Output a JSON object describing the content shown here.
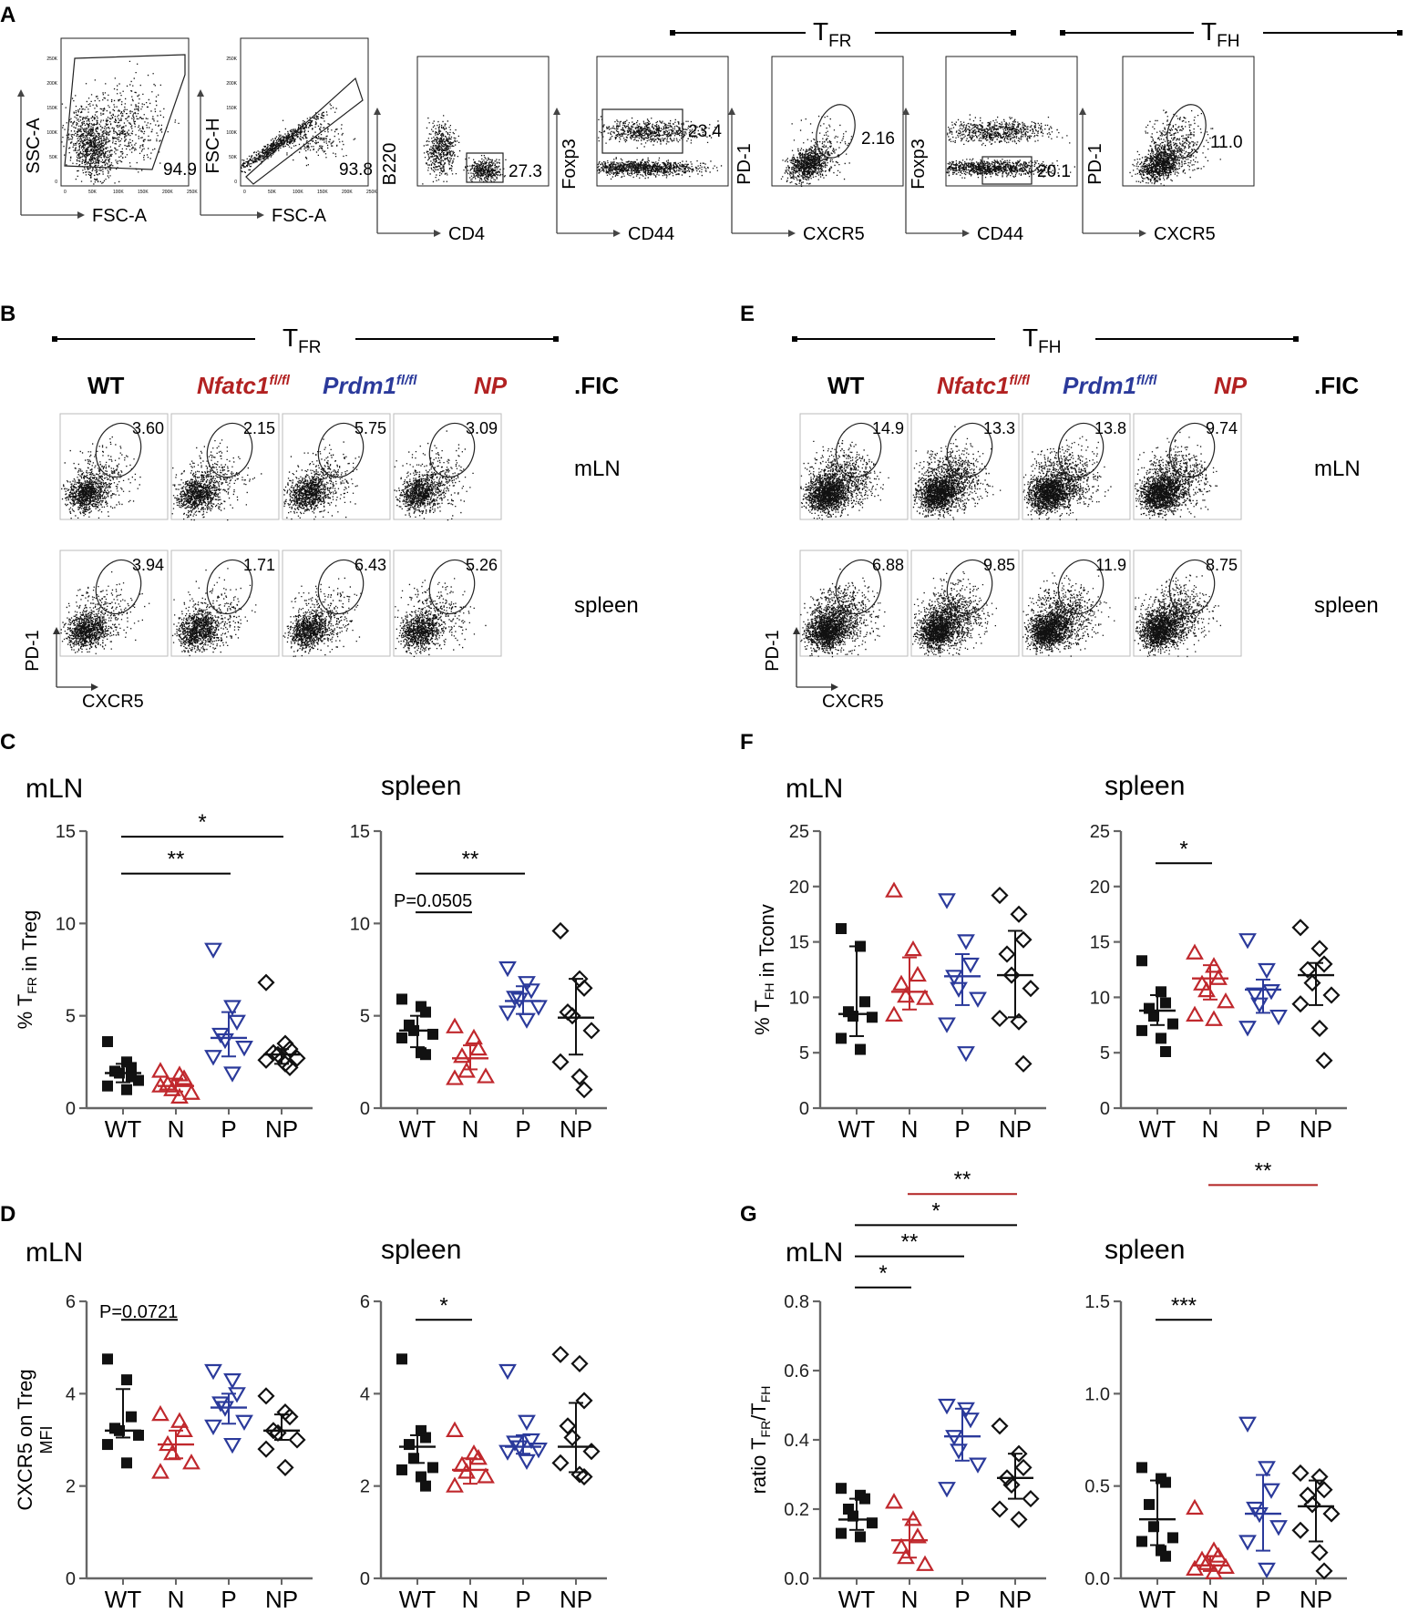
{
  "panel_labels": [
    "A",
    "B",
    "C",
    "D",
    "E",
    "F",
    "G"
  ],
  "panel_a": {
    "plots": [
      {
        "y": "SSC-A",
        "x": "FSC-A",
        "value": "94.9",
        "ticks": [
          "250K",
          "200K",
          "150K",
          "100K",
          "50K",
          "0"
        ],
        "xticks": [
          "0",
          "50K",
          "100K",
          "150K",
          "200K",
          "250K"
        ]
      },
      {
        "y": "FSC-H",
        "x": "FSC-A",
        "value": "93.8",
        "ticks": [
          "250K",
          "200K",
          "150K",
          "100K",
          "50K",
          "0"
        ],
        "xticks": [
          "0",
          "50K",
          "100K",
          "150K",
          "200K",
          "250K"
        ]
      },
      {
        "y": "B220",
        "x": "CD4",
        "value": "27.3"
      },
      {
        "y": "Foxp3",
        "x": "CD44",
        "value": "23.4"
      },
      {
        "y": "PD-1",
        "x": "CXCR5",
        "value": "2.16"
      },
      {
        "y": "Foxp3",
        "x": "CD44",
        "value": "20.1"
      },
      {
        "y": "PD-1",
        "x": "CXCR5",
        "value": "11.0"
      }
    ],
    "tfr_header": {
      "main": "T",
      "sub": "FR"
    },
    "tfh_header": {
      "main": "T",
      "sub": "FH"
    }
  },
  "panel_b": {
    "header": {
      "main": "T",
      "sub": "FR"
    },
    "genotypes": [
      {
        "name": "WT",
        "sup": "",
        "color": "#000000"
      },
      {
        "name": "Nfatc1",
        "sup": "fl/fl",
        "color": "#b22222"
      },
      {
        "name": "Prdm1",
        "sup": "fl/fl",
        "color": "#2b3a9b"
      },
      {
        "name": "NP",
        "sup": "",
        "color": "#b22222"
      }
    ],
    "suffix": ".FIC",
    "rows": [
      {
        "tissue": "mLN",
        "values": [
          "3.60",
          "2.15",
          "5.75",
          "3.09"
        ]
      },
      {
        "tissue": "spleen",
        "values": [
          "3.94",
          "1.71",
          "6.43",
          "5.26"
        ]
      }
    ],
    "y_axis": "PD-1",
    "x_axis": "CXCR5"
  },
  "panel_e": {
    "header": {
      "main": "T",
      "sub": "FH"
    },
    "genotypes": [
      {
        "name": "WT",
        "sup": "",
        "color": "#000000"
      },
      {
        "name": "Nfatc1",
        "sup": "fl/fl",
        "color": "#b22222"
      },
      {
        "name": "Prdm1",
        "sup": "fl/fl",
        "color": "#2b3a9b"
      },
      {
        "name": "NP",
        "sup": "",
        "color": "#b22222"
      }
    ],
    "suffix": ".FIC",
    "rows": [
      {
        "tissue": "mLN",
        "values": [
          "14.9",
          "13.3",
          "13.8",
          "9.74"
        ]
      },
      {
        "tissue": "spleen",
        "values": [
          "6.88",
          "9.85",
          "11.9",
          "8.75"
        ]
      }
    ],
    "y_axis": "PD-1",
    "x_axis": "CXCR5"
  },
  "colors": {
    "WT": "#111111",
    "N": "#c0282d",
    "P": "#2b3a9b",
    "NP": "#111111",
    "red_bar": "#b22222"
  },
  "chart_data": [
    {
      "id": "C-mLN",
      "type": "scatter",
      "title": "mLN",
      "ylabel": "% TFR in Treg",
      "categories": [
        "WT",
        "N",
        "P",
        "NP"
      ],
      "ylim": [
        0,
        15
      ],
      "yticks": [
        0,
        5,
        10,
        15
      ],
      "markers": [
        "square",
        "triangle-up",
        "triangle-down",
        "diamond"
      ],
      "points": [
        [
          3.6,
          2.5,
          2.2,
          2.0,
          1.9,
          1.5,
          1.2,
          1.0,
          1.7
        ],
        [
          2.0,
          1.8,
          1.6,
          1.3,
          1.0,
          0.8,
          1.2,
          0.6
        ],
        [
          8.6,
          5.5,
          4.7,
          4.0,
          3.7,
          3.3,
          2.8,
          1.9
        ],
        [
          6.8,
          3.5,
          3.2,
          3.0,
          2.9,
          2.7,
          2.6,
          2.4,
          2.2
        ]
      ],
      "mean": [
        1.9,
        1.2,
        3.8,
        2.9
      ],
      "err_low": [
        1.4,
        0.9,
        2.8,
        2.4
      ],
      "err_high": [
        2.4,
        1.6,
        5.2,
        3.2
      ],
      "sig": [
        {
          "from": 0,
          "to": 3,
          "label": "*",
          "level": 14.7,
          "color": "#000000"
        },
        {
          "from": 0,
          "to": 2,
          "label": "**",
          "level": 12.7,
          "color": "#000000"
        }
      ]
    },
    {
      "id": "C-spleen",
      "type": "scatter",
      "title": "spleen",
      "ylabel": "",
      "categories": [
        "WT",
        "N",
        "P",
        "NP"
      ],
      "ylim": [
        0,
        15
      ],
      "yticks": [
        0,
        5,
        10,
        15
      ],
      "markers": [
        "square",
        "triangle-up",
        "triangle-down",
        "diamond"
      ],
      "points": [
        [
          5.9,
          5.5,
          5.2,
          4.5,
          4.2,
          4.0,
          3.8,
          3.0,
          2.9
        ],
        [
          4.4,
          3.8,
          3.2,
          2.8,
          2.0,
          1.7,
          1.6
        ],
        [
          7.6,
          6.8,
          6.4,
          6.0,
          5.9,
          5.5,
          5.2,
          4.8
        ],
        [
          9.6,
          7.0,
          6.5,
          5.2,
          5.0,
          4.2,
          2.5,
          1.7,
          1.0
        ]
      ],
      "mean": [
        4.2,
        2.7,
        5.8,
        4.9
      ],
      "err_low": [
        3.3,
        2.1,
        5.1,
        2.9
      ],
      "err_high": [
        5.0,
        3.4,
        6.6,
        7.0
      ],
      "sig": [
        {
          "from": 0,
          "to": 2,
          "label": "**",
          "level": 12.7,
          "color": "#000000"
        },
        {
          "from": 0,
          "to": 1,
          "label": "",
          "level": 10.6,
          "color": "#000000"
        }
      ],
      "note": {
        "text": "P=0.0505",
        "x": 0.8,
        "level": 11.3
      }
    },
    {
      "id": "F-mLN",
      "type": "scatter",
      "title": "mLN",
      "ylabel": "% TFH in Tconv",
      "categories": [
        "WT",
        "N",
        "P",
        "NP"
      ],
      "ylim": [
        0,
        25
      ],
      "yticks": [
        0,
        5,
        10,
        15,
        20,
        25
      ],
      "markers": [
        "square",
        "triangle-up",
        "triangle-down",
        "diamond"
      ],
      "points": [
        [
          16.2,
          14.6,
          9.6,
          8.7,
          8.3,
          8.2,
          6.3,
          5.3
        ],
        [
          19.6,
          14.3,
          12.0,
          11.2,
          10.1,
          9.9,
          8.4
        ],
        [
          18.8,
          15.1,
          13.0,
          11.9,
          10.8,
          9.9,
          7.6,
          5.0
        ],
        [
          19.2,
          17.5,
          15.2,
          13.9,
          12.0,
          10.8,
          8.1,
          7.8,
          4.0
        ]
      ],
      "mean": [
        8.5,
        10.5,
        11.9,
        12.0
      ],
      "err_low": [
        6.5,
        8.9,
        9.3,
        8.2
      ],
      "err_high": [
        14.6,
        13.6,
        13.9,
        16.0
      ],
      "sig": []
    },
    {
      "id": "F-spleen",
      "type": "scatter",
      "title": "spleen",
      "ylabel": "",
      "categories": [
        "WT",
        "N",
        "P",
        "NP"
      ],
      "ylim": [
        0,
        25
      ],
      "yticks": [
        0,
        5,
        10,
        15,
        20,
        25
      ],
      "markers": [
        "square",
        "triangle-up",
        "triangle-down",
        "diamond"
      ],
      "points": [
        [
          13.3,
          10.5,
          9.5,
          9.0,
          8.3,
          7.6,
          7.0,
          6.3,
          5.1
        ],
        [
          14.0,
          12.8,
          11.7,
          11.2,
          10.6,
          9.6,
          8.4,
          8.0
        ],
        [
          15.2,
          12.5,
          10.6,
          10.3,
          9.4,
          8.3,
          7.3
        ],
        [
          16.3,
          14.4,
          13.0,
          12.5,
          11.3,
          10.2,
          9.4,
          7.2,
          4.3
        ]
      ],
      "mean": [
        8.8,
        11.7,
        10.7,
        12.0
      ],
      "err_low": [
        7.5,
        9.8,
        8.6,
        9.3
      ],
      "err_high": [
        10.2,
        12.9,
        11.6,
        13.1
      ],
      "sig": [
        {
          "from": 0,
          "to": 1,
          "label": "*",
          "level": 22.1,
          "color": "#000000"
        }
      ]
    },
    {
      "id": "D-mLN",
      "type": "scatter",
      "title": "mLN",
      "ylabel": "CXCR5 on Treg\nMFI",
      "categories": [
        "WT",
        "N",
        "P",
        "NP"
      ],
      "ylim": [
        0,
        6
      ],
      "yticks": [
        0,
        2,
        4,
        6
      ],
      "markers": [
        "square",
        "triangle-up",
        "triangle-down",
        "diamond"
      ],
      "points": [
        [
          4.75,
          4.3,
          3.5,
          3.25,
          3.2,
          3.1,
          2.9,
          2.5
        ],
        [
          3.55,
          3.4,
          3.2,
          2.9,
          2.7,
          2.5,
          2.3
        ],
        [
          4.5,
          4.3,
          4.0,
          3.8,
          3.7,
          3.4,
          3.3,
          2.9
        ],
        [
          3.95,
          3.6,
          3.5,
          3.2,
          3.15,
          3.0,
          2.8,
          2.4
        ]
      ],
      "mean": [
        3.2,
        2.9,
        3.7,
        3.2
      ],
      "err_low": [
        3.05,
        2.6,
        3.35,
        3.0
      ],
      "err_high": [
        4.1,
        3.2,
        4.0,
        3.55
      ],
      "sig": [
        {
          "from": 0,
          "to": 1,
          "label": "",
          "level": 5.6,
          "color": "#000000"
        }
      ],
      "note": {
        "text": "P=0.0721",
        "x": 0.8,
        "level": 5.8
      }
    },
    {
      "id": "D-spleen",
      "type": "scatter",
      "title": "spleen",
      "ylabel": "",
      "categories": [
        "WT",
        "N",
        "P",
        "NP"
      ],
      "ylim": [
        0,
        6
      ],
      "yticks": [
        0,
        2,
        4,
        6
      ],
      "markers": [
        "square",
        "triangle-up",
        "triangle-down",
        "diamond"
      ],
      "points": [
        [
          4.75,
          3.2,
          3.05,
          2.9,
          2.6,
          2.4,
          2.35,
          2.2,
          2.0
        ],
        [
          3.2,
          2.7,
          2.6,
          2.45,
          2.3,
          2.2,
          2.0
        ],
        [
          4.5,
          3.4,
          3.0,
          2.95,
          2.85,
          2.8,
          2.75,
          2.55
        ],
        [
          4.85,
          4.65,
          3.85,
          3.3,
          3.05,
          2.75,
          2.5,
          2.25,
          2.2
        ]
      ],
      "mean": [
        2.85,
        2.35,
        2.85,
        2.85
      ],
      "err_low": [
        2.5,
        2.05,
        2.7,
        2.3
      ],
      "err_high": [
        3.1,
        2.6,
        3.1,
        3.8
      ],
      "sig": [
        {
          "from": 0,
          "to": 1,
          "label": "*",
          "level": 5.6,
          "color": "#000000"
        }
      ]
    },
    {
      "id": "G-mLN",
      "type": "scatter",
      "title": "mLN",
      "ylabel": "ratio TFR/TFH",
      "categories": [
        "WT",
        "N",
        "P",
        "NP"
      ],
      "ylim": [
        0,
        0.8
      ],
      "yticks": [
        0.0,
        0.2,
        0.4,
        0.6,
        0.8
      ],
      "markers": [
        "square",
        "triangle-up",
        "triangle-down",
        "diamond"
      ],
      "points": [
        [
          0.26,
          0.24,
          0.23,
          0.2,
          0.18,
          0.16,
          0.13,
          0.12
        ],
        [
          0.22,
          0.17,
          0.12,
          0.09,
          0.06,
          0.04
        ],
        [
          0.5,
          0.49,
          0.46,
          0.41,
          0.37,
          0.33,
          0.26
        ],
        [
          0.44,
          0.36,
          0.32,
          0.29,
          0.27,
          0.23,
          0.2,
          0.17
        ]
      ],
      "mean": [
        0.17,
        0.11,
        0.41,
        0.29
      ],
      "err_low": [
        0.14,
        0.06,
        0.34,
        0.23
      ],
      "err_high": [
        0.23,
        0.17,
        0.49,
        0.36
      ],
      "sig": [
        {
          "from": 0,
          "to": 1,
          "label": "*",
          "level": 0.84,
          "color": "#000000"
        },
        {
          "from": 0,
          "to": 2,
          "label": "**",
          "level": 0.93,
          "color": "#000000"
        },
        {
          "from": 0,
          "to": 3,
          "label": "*",
          "level": 1.02,
          "color": "#000000"
        },
        {
          "from": 1,
          "to": 3,
          "label": "**",
          "level": 1.11,
          "color": "#b22222"
        }
      ]
    },
    {
      "id": "G-spleen",
      "type": "scatter",
      "title": "spleen",
      "ylabel": "",
      "categories": [
        "WT",
        "N",
        "P",
        "NP"
      ],
      "ylim": [
        0,
        1.5
      ],
      "yticks": [
        0.0,
        0.5,
        1.0,
        1.5
      ],
      "markers": [
        "square",
        "triangle-up",
        "triangle-down",
        "diamond"
      ],
      "points": [
        [
          0.6,
          0.54,
          0.52,
          0.4,
          0.28,
          0.22,
          0.2,
          0.15,
          0.12
        ],
        [
          0.38,
          0.15,
          0.12,
          0.1,
          0.08,
          0.06,
          0.05,
          0.03
        ],
        [
          0.84,
          0.6,
          0.48,
          0.38,
          0.35,
          0.28,
          0.2,
          0.05
        ],
        [
          0.57,
          0.55,
          0.48,
          0.45,
          0.4,
          0.35,
          0.26,
          0.14,
          0.04
        ]
      ],
      "mean": [
        0.32,
        0.07,
        0.35,
        0.39
      ],
      "err_low": [
        0.18,
        0.04,
        0.15,
        0.2
      ],
      "err_high": [
        0.53,
        0.12,
        0.56,
        0.53
      ],
      "sig": [
        {
          "from": 0,
          "to": 1,
          "label": "***",
          "level": 1.4,
          "color": "#000000"
        },
        {
          "from": 1,
          "to": 3,
          "label": "**",
          "level": 2.13,
          "color": "#b22222"
        }
      ]
    }
  ]
}
